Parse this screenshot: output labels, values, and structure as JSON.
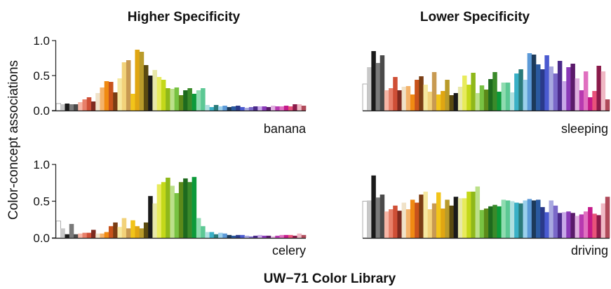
{
  "figure": {
    "titles": [
      "Higher Specificity",
      "Lower Specificity"
    ],
    "ylabel": "Color-concept associations",
    "xlabel": "UW−71 Color Library",
    "yticks": [
      "0.0",
      "0.5",
      "1.0"
    ]
  },
  "palette": [
    "#ffffff",
    "#c8c8c8",
    "#1a1a1a",
    "#7a7a7a",
    "#4a4a4a",
    "#f7b6a6",
    "#e8806a",
    "#cf4f36",
    "#7d2a1f",
    "#f0e2c8",
    "#f4b36a",
    "#f08a12",
    "#c8531b",
    "#7a3d14",
    "#f6e8a0",
    "#f2d27a",
    "#c89a52",
    "#f2c41a",
    "#e0a612",
    "#b99b2a",
    "#5a4a10",
    "#1a1a1a",
    "#e8e8a8",
    "#e8eb5c",
    "#c4d81a",
    "#8fb81a",
    "#bce08a",
    "#78c242",
    "#5c8a1a",
    "#1e6a1e",
    "#3a8a2a",
    "#0c9a3a",
    "#8fdcb0",
    "#5cc894",
    "#b0e0e0",
    "#3ab0c6",
    "#2a7a7a",
    "#9ad0ec",
    "#5c9ad8",
    "#1c3a5a",
    "#2a5aa0",
    "#2a3a8a",
    "#4a5ad0",
    "#a8a8e0",
    "#7a68c8",
    "#4a2a8a",
    "#c8a8e8",
    "#8a3ab8",
    "#5a1a6a",
    "#e0b0e0",
    "#b83ab0",
    "#e070c0",
    "#c41a8a",
    "#e8527a",
    "#8a1a4a",
    "#f0b8c4",
    "#b04a5a",
    "#d81a2a"
  ],
  "chart_data": [
    {
      "type": "bar",
      "title": "Higher Specificity",
      "word": "banana",
      "ylim": [
        0,
        1
      ],
      "values": [
        0.1,
        0.09,
        0.1,
        0.09,
        0.09,
        0.12,
        0.16,
        0.19,
        0.13,
        0.25,
        0.33,
        0.42,
        0.41,
        0.26,
        0.46,
        0.69,
        0.72,
        0.24,
        0.87,
        0.84,
        0.65,
        0.5,
        0.58,
        0.48,
        0.44,
        0.32,
        0.31,
        0.33,
        0.22,
        0.29,
        0.32,
        0.24,
        0.29,
        0.32,
        0.08,
        0.05,
        0.08,
        0.06,
        0.07,
        0.05,
        0.06,
        0.07,
        0.05,
        0.04,
        0.05,
        0.06,
        0.06,
        0.06,
        0.05,
        0.07,
        0.06,
        0.06,
        0.07,
        0.06,
        0.09,
        0.09,
        0.07
      ]
    },
    {
      "type": "bar",
      "title": "Lower Specificity",
      "word": "sleeping",
      "ylim": [
        0,
        1
      ],
      "values": [
        0.38,
        0.62,
        0.85,
        0.68,
        0.79,
        0.29,
        0.32,
        0.48,
        0.29,
        0.34,
        0.35,
        0.23,
        0.44,
        0.49,
        0.37,
        0.27,
        0.55,
        0.23,
        0.28,
        0.44,
        0.22,
        0.25,
        0.34,
        0.5,
        0.37,
        0.54,
        0.25,
        0.36,
        0.3,
        0.45,
        0.55,
        0.27,
        0.4,
        0.4,
        0.26,
        0.53,
        0.59,
        0.44,
        0.82,
        0.8,
        0.66,
        0.59,
        0.79,
        0.63,
        0.53,
        0.71,
        0.42,
        0.62,
        0.67,
        0.46,
        0.29,
        0.56,
        0.19,
        0.28,
        0.64,
        0.56,
        0.16
      ]
    },
    {
      "type": "bar",
      "title": "",
      "word": "celery",
      "ylim": [
        0,
        1
      ],
      "values": [
        0.23,
        0.13,
        0.05,
        0.19,
        0.05,
        0.06,
        0.07,
        0.07,
        0.11,
        0.06,
        0.06,
        0.08,
        0.16,
        0.21,
        0.15,
        0.27,
        0.13,
        0.24,
        0.16,
        0.13,
        0.21,
        0.57,
        0.47,
        0.73,
        0.76,
        0.82,
        0.71,
        0.61,
        0.76,
        0.81,
        0.76,
        0.83,
        0.27,
        0.16,
        0.08,
        0.08,
        0.05,
        0.07,
        0.06,
        0.04,
        0.03,
        0.04,
        0.04,
        0.03,
        0.02,
        0.03,
        0.04,
        0.03,
        0.03,
        0.02,
        0.03,
        0.04,
        0.04,
        0.04,
        0.03,
        0.06,
        0.04
      ]
    },
    {
      "type": "bar",
      "title": "",
      "word": "driving",
      "ylim": [
        0,
        1
      ],
      "values": [
        0.5,
        0.51,
        0.85,
        0.55,
        0.59,
        0.36,
        0.39,
        0.44,
        0.37,
        0.48,
        0.39,
        0.52,
        0.48,
        0.59,
        0.63,
        0.39,
        0.47,
        0.62,
        0.4,
        0.52,
        0.44,
        0.56,
        0.54,
        0.54,
        0.63,
        0.63,
        0.7,
        0.38,
        0.4,
        0.43,
        0.45,
        0.43,
        0.52,
        0.51,
        0.5,
        0.48,
        0.47,
        0.51,
        0.53,
        0.51,
        0.52,
        0.42,
        0.35,
        0.51,
        0.44,
        0.34,
        0.35,
        0.36,
        0.34,
        0.3,
        0.32,
        0.36,
        0.42,
        0.33,
        0.31,
        0.47,
        0.56
      ]
    }
  ]
}
